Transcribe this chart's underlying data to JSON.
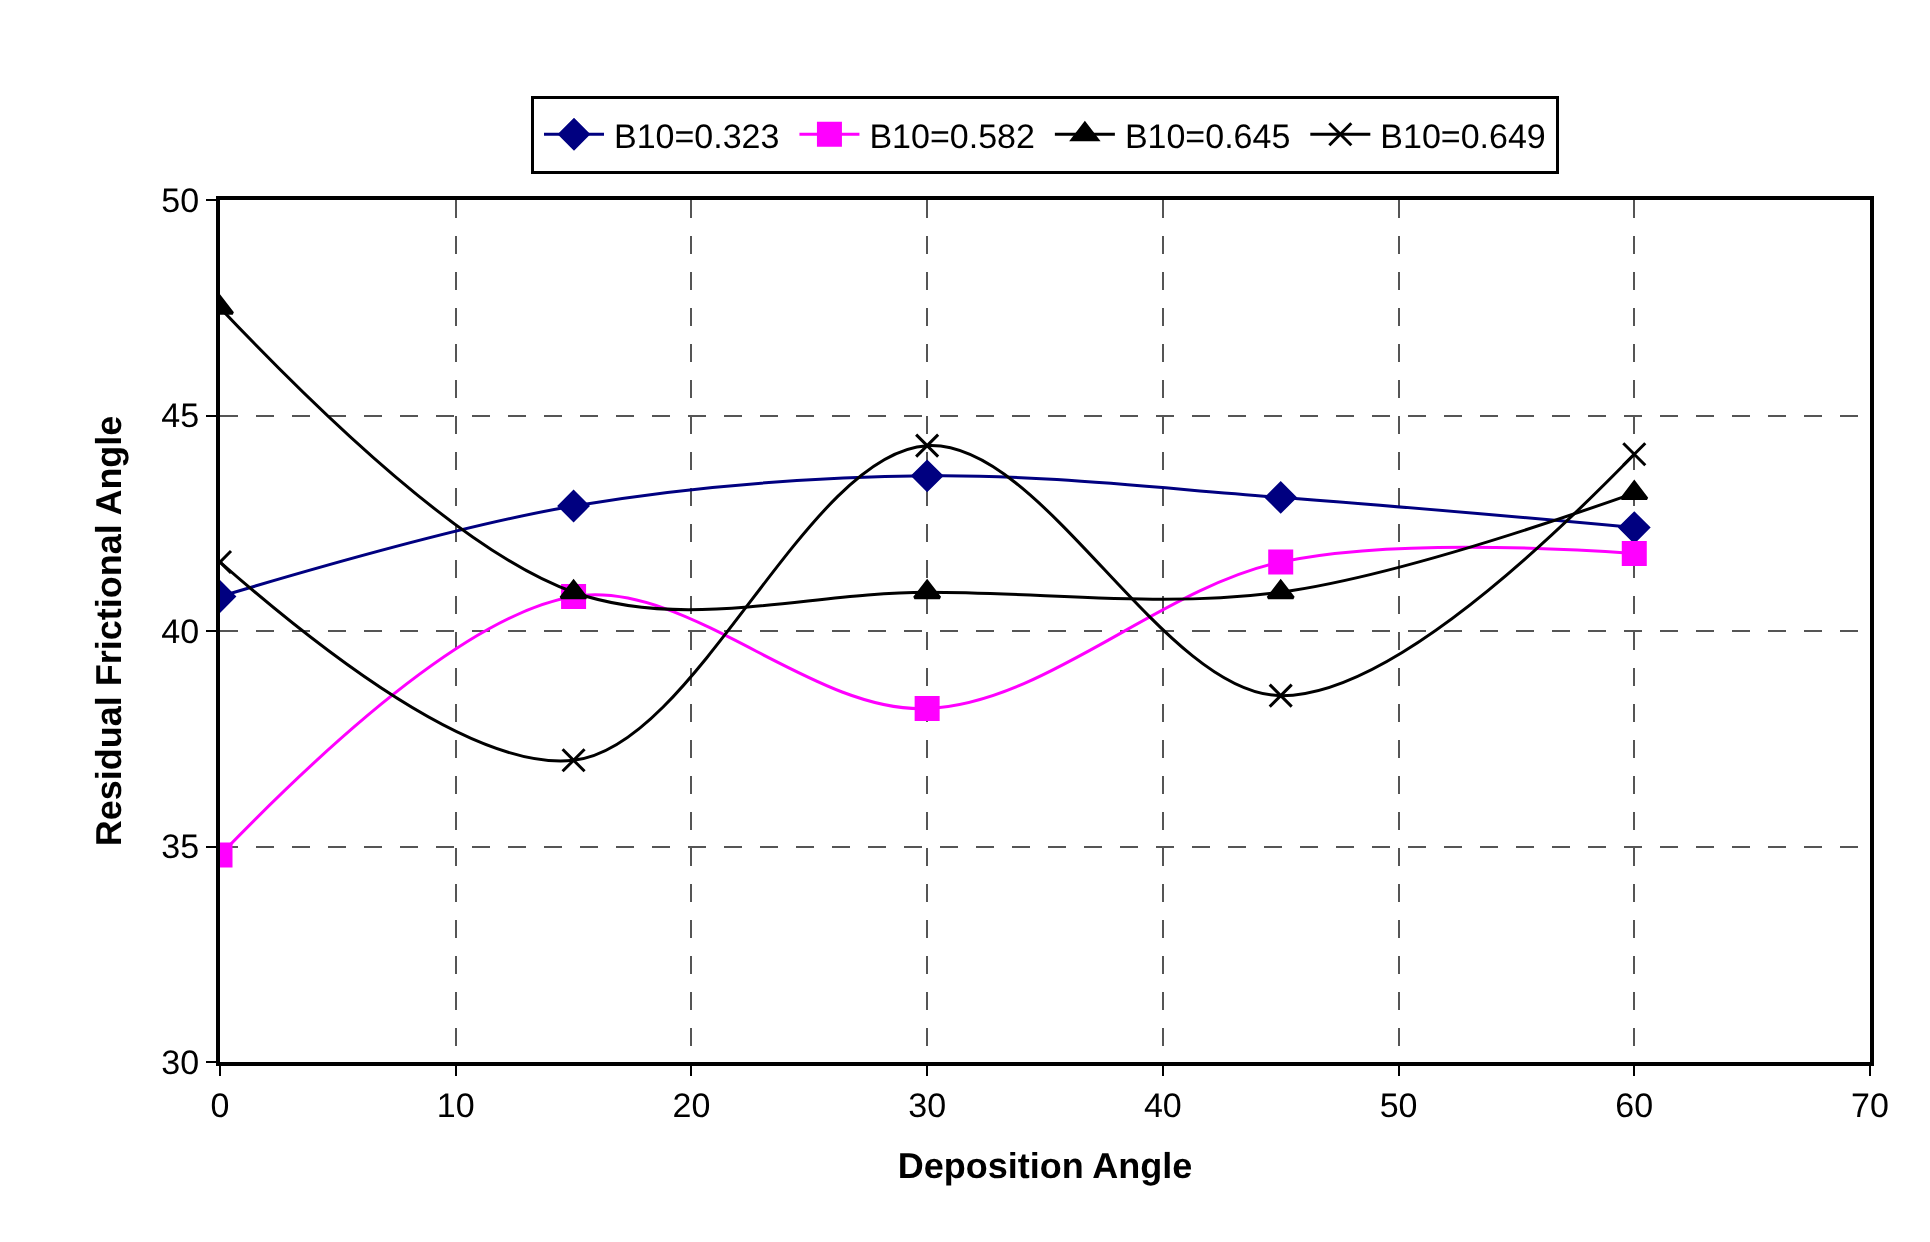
{
  "chart_data": {
    "type": "line",
    "xlabel": "Deposition Angle",
    "ylabel": "Residual Frictional Angle",
    "x": [
      0,
      15,
      30,
      45,
      60
    ],
    "series": [
      {
        "name": "B10=0.323",
        "color": "#000080",
        "marker": "diamond",
        "values": [
          40.8,
          42.9,
          43.6,
          43.1,
          42.4
        ]
      },
      {
        "name": "B10=0.582",
        "color": "#ff00ff",
        "marker": "square",
        "values": [
          34.8,
          40.8,
          38.2,
          41.6,
          41.8
        ]
      },
      {
        "name": "B10=0.645",
        "color": "#000000",
        "marker": "triangle",
        "values": [
          47.5,
          40.9,
          40.9,
          40.9,
          43.2
        ]
      },
      {
        "name": "B10=0.649",
        "color": "#000000",
        "marker": "cross",
        "values": [
          41.6,
          37.0,
          44.3,
          38.5,
          44.1
        ]
      }
    ],
    "xlim": [
      0,
      70
    ],
    "xticks": [
      0,
      10,
      20,
      30,
      40,
      50,
      60,
      70
    ],
    "ylim": [
      30,
      50
    ],
    "yticks": [
      30,
      35,
      40,
      45,
      50
    ],
    "grid": true,
    "legend": "top",
    "line_style": "solid"
  }
}
